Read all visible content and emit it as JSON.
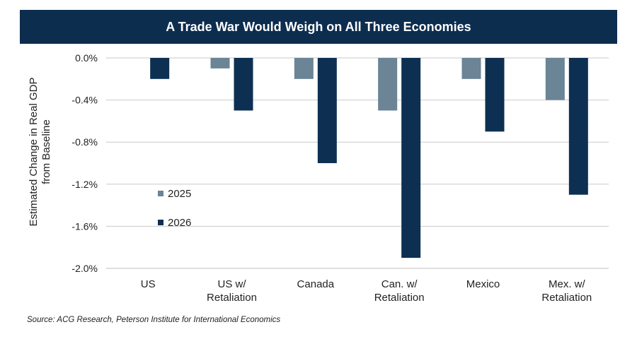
{
  "title": "A Trade War Would Weigh on All Three Economies",
  "source": "Source: ACG Research, Peterson Institute for International Economics",
  "chart_data": {
    "type": "bar",
    "title": "A Trade War Would Weigh on All Three Economies",
    "categories": [
      [
        "US"
      ],
      [
        "US w/",
        "Retaliation"
      ],
      [
        "Canada"
      ],
      [
        "Can. w/",
        "Retaliation"
      ],
      [
        "Mexico"
      ],
      [
        "Mex. w/",
        "Retaliation"
      ]
    ],
    "series": [
      {
        "name": "2025",
        "color": "#6b8496",
        "values": [
          0.0,
          -0.1,
          -0.2,
          -0.5,
          -0.2,
          -0.4
        ]
      },
      {
        "name": "2026",
        "color": "#0d3052",
        "values": [
          -0.2,
          -0.5,
          -1.0,
          -1.9,
          -0.7,
          -1.3
        ]
      }
    ],
    "ylabel_lines": [
      "Estimated Change in Real GDP",
      "from Baseline"
    ],
    "xlabel": "",
    "ylim": [
      -2.0,
      0.0
    ],
    "yticks": [
      0.0,
      -0.4,
      -0.8,
      -1.2,
      -1.6,
      -2.0
    ],
    "ytick_labels": [
      "0.0%",
      "-0.4%",
      "-0.8%",
      "-1.2%",
      "-1.6%",
      "-2.0%"
    ],
    "grid": true,
    "legend_position": "left-inside"
  }
}
